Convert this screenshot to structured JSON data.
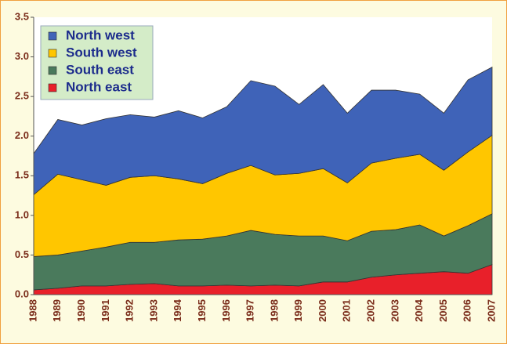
{
  "chart_data": {
    "type": "stacked_area",
    "categories": [
      "1988",
      "1989",
      "1990",
      "1991",
      "1992",
      "1993",
      "1994",
      "1995",
      "1996",
      "1997",
      "1998",
      "1999",
      "2000",
      "2001",
      "2002",
      "2003",
      "2004",
      "2005",
      "2006",
      "2007"
    ],
    "series": [
      {
        "name": "North west",
        "color": "#3f63b8",
        "values": [
          0.52,
          0.69,
          0.69,
          0.84,
          0.79,
          0.74,
          0.86,
          0.83,
          0.84,
          1.07,
          1.12,
          0.87,
          1.06,
          0.88,
          0.92,
          0.86,
          0.76,
          0.72,
          0.91,
          0.86
        ]
      },
      {
        "name": "South west",
        "color": "#ffc600",
        "values": [
          0.78,
          1.02,
          0.9,
          0.78,
          0.82,
          0.84,
          0.77,
          0.7,
          0.79,
          0.82,
          0.75,
          0.79,
          0.85,
          0.73,
          0.86,
          0.9,
          0.89,
          0.83,
          0.93,
          0.99
        ]
      },
      {
        "name": "South east",
        "color": "#4a7a5c",
        "values": [
          0.42,
          0.42,
          0.44,
          0.49,
          0.53,
          0.52,
          0.58,
          0.59,
          0.62,
          0.7,
          0.64,
          0.63,
          0.58,
          0.52,
          0.58,
          0.57,
          0.61,
          0.45,
          0.6,
          0.64
        ]
      },
      {
        "name": "North east",
        "color": "#e8202a",
        "values": [
          0.06,
          0.08,
          0.11,
          0.11,
          0.13,
          0.14,
          0.11,
          0.11,
          0.12,
          0.11,
          0.12,
          0.11,
          0.16,
          0.16,
          0.22,
          0.25,
          0.27,
          0.29,
          0.27,
          0.38
        ]
      }
    ],
    "ylim": [
      0,
      3.5
    ],
    "yticks": [
      {
        "value": 0,
        "label": "0.0"
      },
      {
        "value": 0.5,
        "label": "0.5"
      },
      {
        "value": 1,
        "label": "1.0"
      },
      {
        "value": 1.5,
        "label": "1.5"
      },
      {
        "value": 2,
        "label": "2.0"
      },
      {
        "value": 2.5,
        "label": "2.5"
      },
      {
        "value": 3,
        "label": "3.0"
      },
      {
        "value": 3.5,
        "label": "3.5"
      }
    ],
    "legend": "top-left"
  }
}
